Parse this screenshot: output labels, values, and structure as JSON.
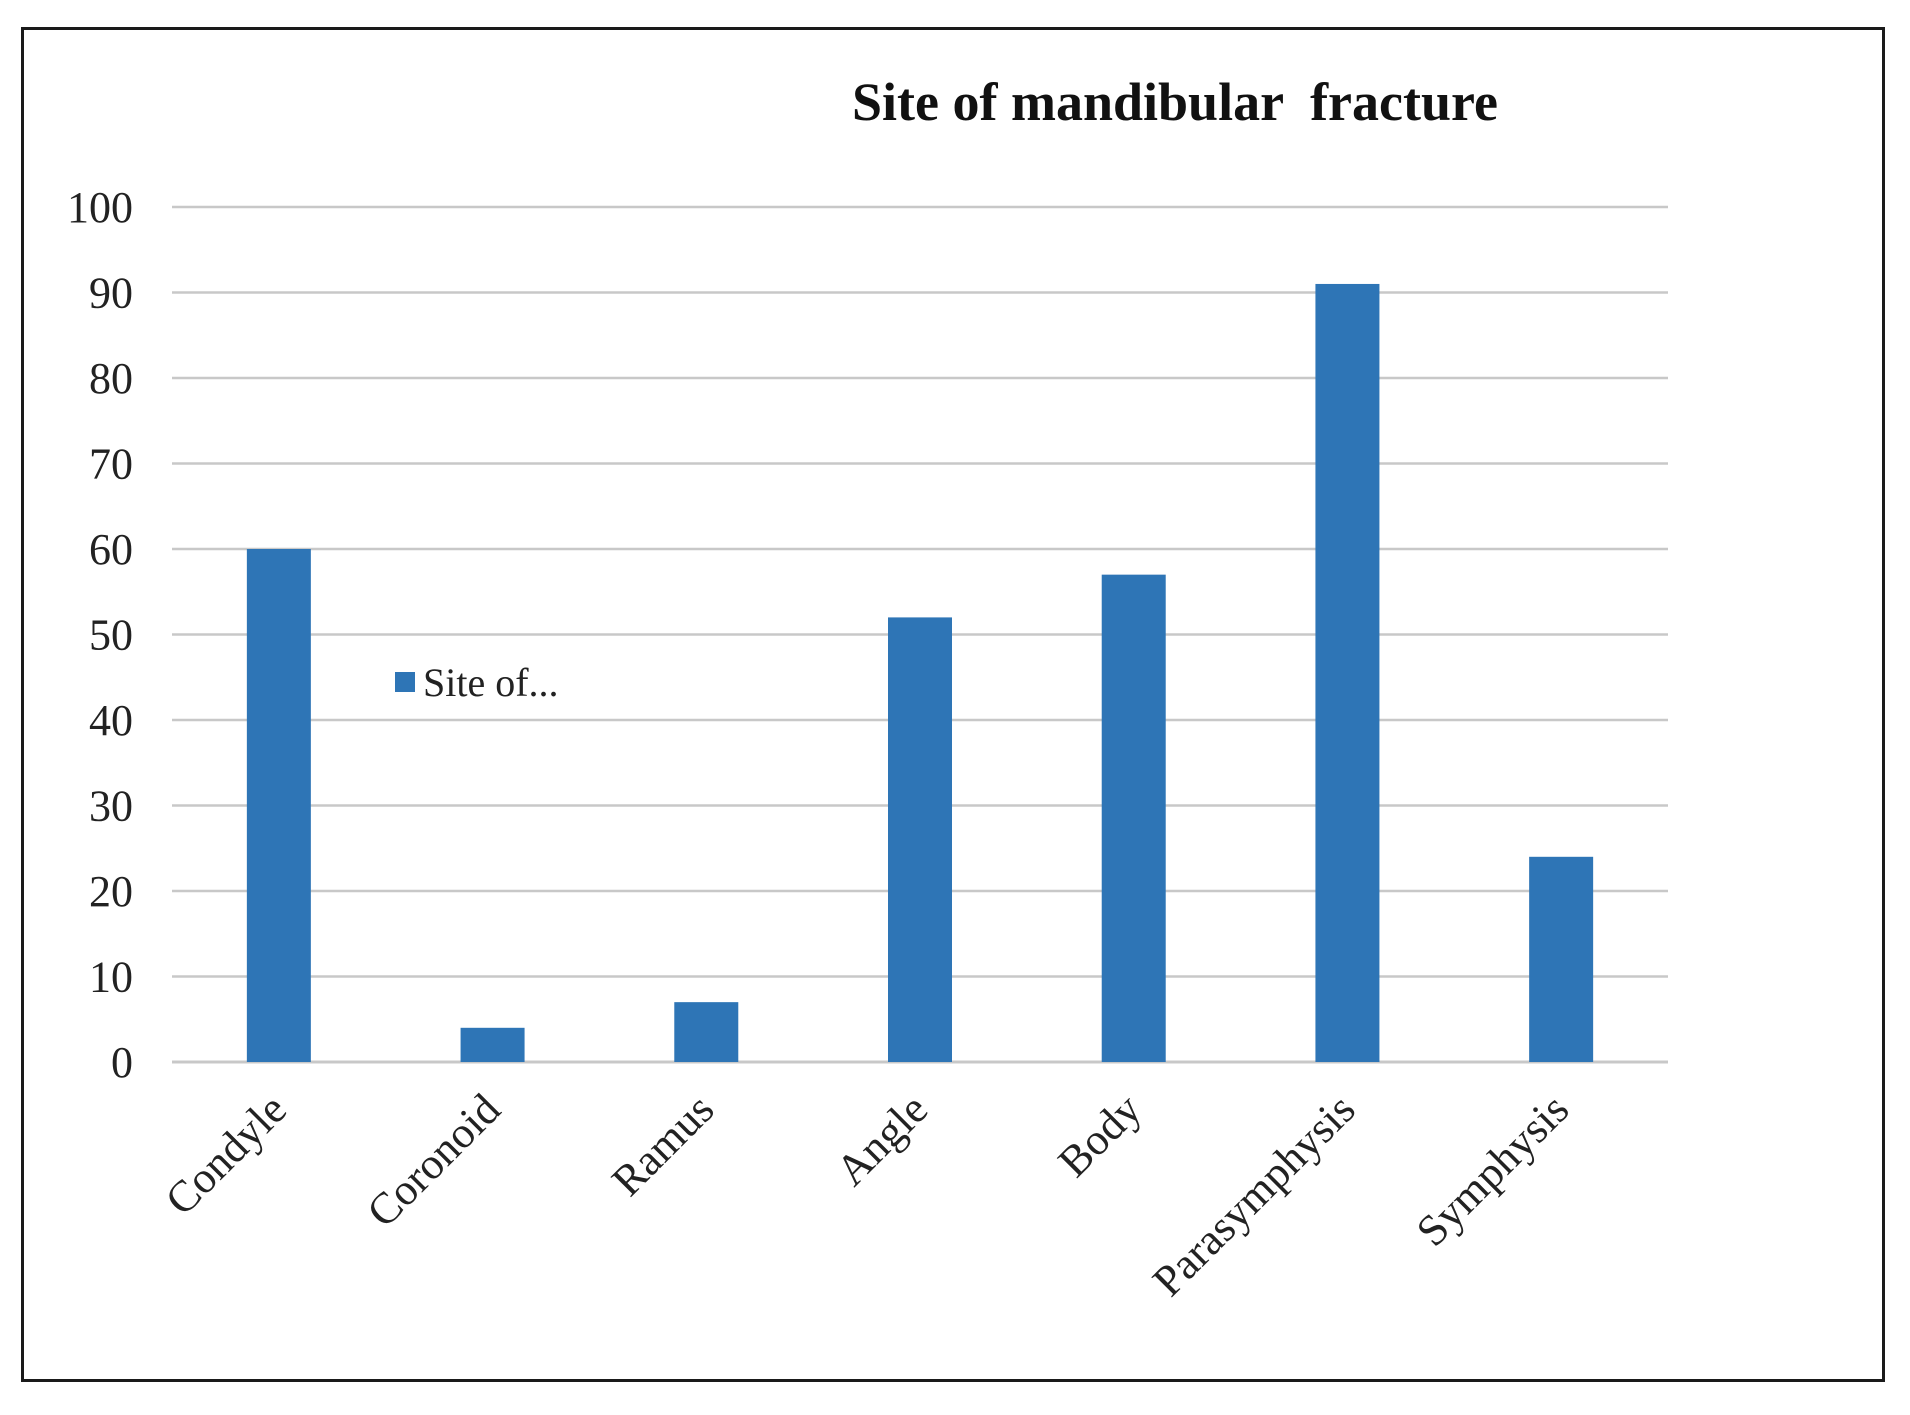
{
  "chart_data": {
    "type": "bar",
    "title": "Site of mandibular  fracture",
    "xlabel": "",
    "ylabel": "",
    "categories": [
      "Condyle",
      "Coronoid",
      "Ramus",
      "Angle",
      "Body",
      "Parasymphysis",
      "Symphysis"
    ],
    "series": [
      {
        "name": "Site of...",
        "values": [
          60,
          4,
          7,
          52,
          57,
          91,
          24
        ],
        "color": "#2e75b6"
      }
    ],
    "ylim": [
      0,
      100
    ],
    "yticks": [
      0,
      10,
      20,
      30,
      40,
      50,
      60,
      70,
      80,
      90,
      100
    ],
    "grid": true,
    "gridline_color": "#c8c8c8",
    "legend": {
      "label": "Site of...",
      "placement": "inside-left"
    }
  }
}
